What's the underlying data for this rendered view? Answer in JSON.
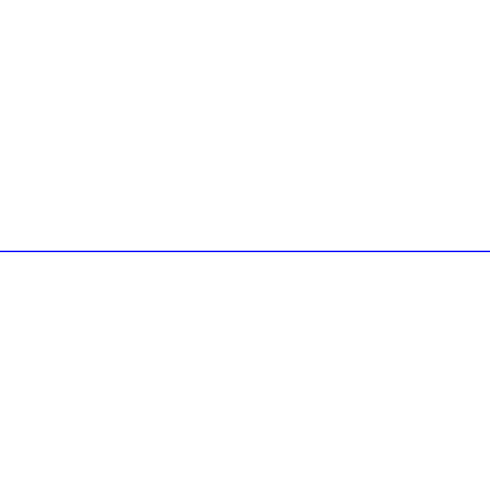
{
  "background_color": "#ffffff",
  "line": {
    "color": "#0000ff",
    "orientation": "horizontal"
  }
}
